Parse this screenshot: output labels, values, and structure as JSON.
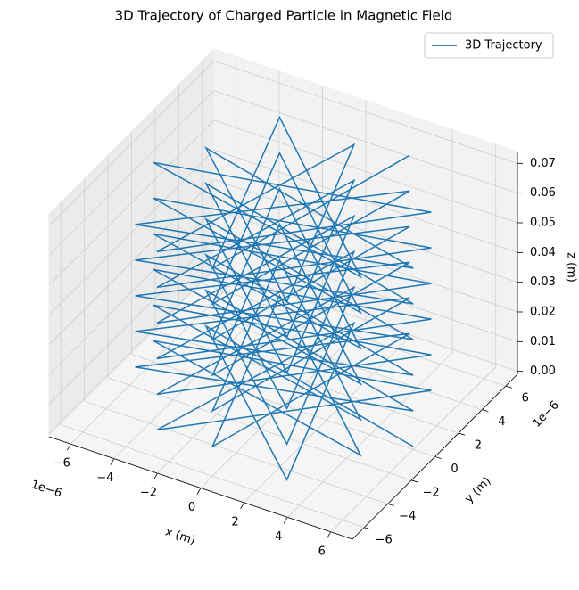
{
  "chart_data": {
    "type": "line3d",
    "title": "3D Trajectory of Charged Particle in Magnetic Field",
    "xlabel": "x (m)",
    "ylabel": "y (m)",
    "zlabel": "z (m)",
    "x_offset_text": "1e−6",
    "y_offset_text": "1e−6",
    "xlim": [
      -7,
      7
    ],
    "ylim": [
      -7,
      7
    ],
    "zlim": [
      -0.001,
      0.074
    ],
    "xticks": [
      {
        "value": -6,
        "label": "−6"
      },
      {
        "value": -4,
        "label": "−4"
      },
      {
        "value": -2,
        "label": "−2"
      },
      0,
      2,
      4,
      6
    ],
    "yticks": [
      {
        "value": -6,
        "label": "−6"
      },
      {
        "value": -4,
        "label": "−4"
      },
      {
        "value": -2,
        "label": "−2"
      },
      0,
      2,
      4,
      6
    ],
    "zticks": [
      {
        "value": 0,
        "label": "0.00"
      },
      {
        "value": 0.01,
        "label": "0.01"
      },
      {
        "value": 0.02,
        "label": "0.02"
      },
      {
        "value": 0.03,
        "label": "0.03"
      },
      {
        "value": 0.04,
        "label": "0.04"
      },
      {
        "value": 0.05,
        "label": "0.05"
      },
      {
        "value": 0.06,
        "label": "0.06"
      },
      {
        "value": 0.07,
        "label": "0.07"
      }
    ],
    "grid": true,
    "legend": "upper right",
    "series": [
      {
        "name": "3D Trajectory",
        "color": "#1f77b4",
        "x": [
          6,
          -5.2,
          3,
          0,
          -3,
          5.2,
          -6,
          5.2,
          -3,
          0,
          3,
          -5.2,
          6,
          -5.2,
          3,
          0,
          -3,
          5.2,
          -6,
          5.2,
          -3,
          0,
          3,
          -5.2,
          6,
          -5.2,
          3,
          0,
          -3,
          5.2,
          -6,
          5.2,
          -3,
          0,
          3,
          -5.2,
          6,
          -5.2,
          3,
          0,
          -3,
          5.2,
          -6,
          5.2,
          -3,
          0,
          3,
          -5.2,
          6,
          -5.2,
          3,
          0,
          -3,
          5.2,
          -6,
          5.2,
          -3,
          0,
          3,
          -5.2,
          6,
          -5.2,
          3,
          0,
          -3,
          5.2,
          -6,
          5.2,
          -3,
          0,
          3
        ],
        "y": [
          0,
          3,
          -5.2,
          6,
          -5.2,
          3,
          0,
          -3,
          5.2,
          -6,
          5.2,
          -3,
          0,
          3,
          -5.2,
          6,
          -5.2,
          3,
          0,
          -3,
          5.2,
          -6,
          5.2,
          -3,
          0,
          3,
          -5.2,
          6,
          -5.2,
          3,
          0,
          -3,
          5.2,
          -6,
          5.2,
          -3,
          0,
          3,
          -5.2,
          6,
          -5.2,
          3,
          0,
          -3,
          5.2,
          -6,
          5.2,
          -3,
          0,
          3,
          -5.2,
          6,
          -5.2,
          3,
          0,
          -3,
          5.2,
          -6,
          5.2,
          -3,
          0,
          3,
          -5.2,
          6,
          -5.2,
          3,
          0,
          -3,
          5.2,
          -6,
          5.2
        ],
        "z": [
          0,
          0.001,
          0.002,
          0.003,
          0.004,
          0.005,
          0.006,
          0.007,
          0.008,
          0.009,
          0.01,
          0.011,
          0.012,
          0.013,
          0.014,
          0.015,
          0.016,
          0.017,
          0.018,
          0.019,
          0.02,
          0.021,
          0.022,
          0.023,
          0.024,
          0.025,
          0.026,
          0.027,
          0.028,
          0.029,
          0.03,
          0.031,
          0.032,
          0.033,
          0.034,
          0.035,
          0.036,
          0.037,
          0.038,
          0.039,
          0.04,
          0.041,
          0.042,
          0.043,
          0.044,
          0.045,
          0.046,
          0.047,
          0.048,
          0.049,
          0.05,
          0.051,
          0.052,
          0.053,
          0.054,
          0.055,
          0.056,
          0.057,
          0.058,
          0.059,
          0.06,
          0.061,
          0.062,
          0.063,
          0.064,
          0.065,
          0.066,
          0.067,
          0.068,
          0.069,
          0.07
        ]
      }
    ]
  }
}
